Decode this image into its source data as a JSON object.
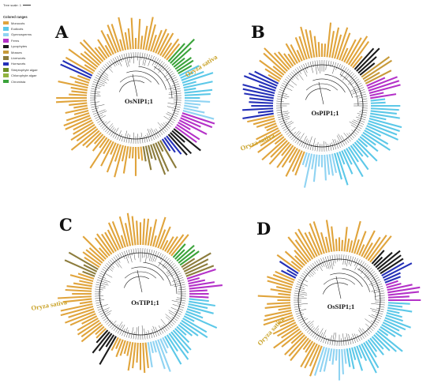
{
  "tree_scale": {
    "label": "Tree scale: 1"
  },
  "legend": {
    "title": "Colored ranges",
    "items": [
      {
        "label": "Monocots",
        "color": "#e0a43c"
      },
      {
        "label": "Eudicots",
        "color": "#5cc8e8"
      },
      {
        "label": "Gymnosperms",
        "color": "#8fd3f2"
      },
      {
        "label": "Ferns",
        "color": "#b431c8"
      },
      {
        "label": "Lycophytes",
        "color": "#1b1b1b"
      },
      {
        "label": "Mosses",
        "color": "#c79a39"
      },
      {
        "label": "Liverworts",
        "color": "#8c7c3c"
      },
      {
        "label": "Hornworts",
        "color": "#2430b8"
      },
      {
        "label": "Streptophyte algae",
        "color": "#6b8e23"
      },
      {
        "label": "Chlorophyte algae",
        "color": "#91b440"
      },
      {
        "label": "Chromista",
        "color": "#3aa33a"
      }
    ]
  },
  "panels": [
    {
      "letter": "A",
      "center_label": "OsNIP1;1",
      "highlight": "Oryza sativa",
      "oryza_color": "#c9a227"
    },
    {
      "letter": "B",
      "center_label": "OsPIP1;1",
      "highlight": "Oryza sativa",
      "oryza_color": "#c9a227"
    },
    {
      "letter": "C",
      "center_label": "OsTIP1;1",
      "highlight": "Oryza sativa",
      "oryza_color": "#c9a227"
    },
    {
      "letter": "D",
      "center_label": "OsSIP1;1",
      "highlight": "Oryza sativa",
      "oryza_color": "#c9a227"
    }
  ]
}
